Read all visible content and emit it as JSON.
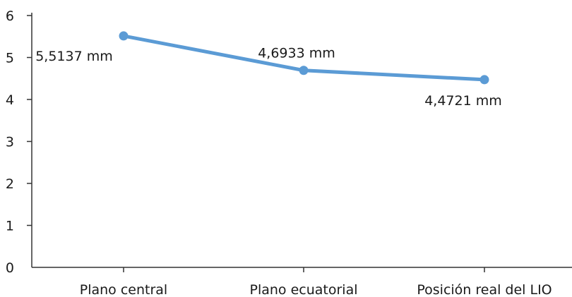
{
  "chart_data": {
    "type": "line",
    "categories": [
      "Plano central",
      "Plano ecuatorial",
      "Posición real del LIO"
    ],
    "series": [
      {
        "values": [
          5.5137,
          4.6933,
          4.4721
        ],
        "color": "#5b9bd5",
        "labels": [
          "5,5137 mm",
          "4,6933 mm",
          "4,4721 mm"
        ]
      }
    ],
    "yticks": [
      "0",
      "1",
      "2",
      "3",
      "4",
      "5",
      "6"
    ],
    "ylim": [
      0,
      6
    ],
    "grid": false,
    "legend": "none",
    "title": "",
    "xlabel": "",
    "ylabel": ""
  }
}
